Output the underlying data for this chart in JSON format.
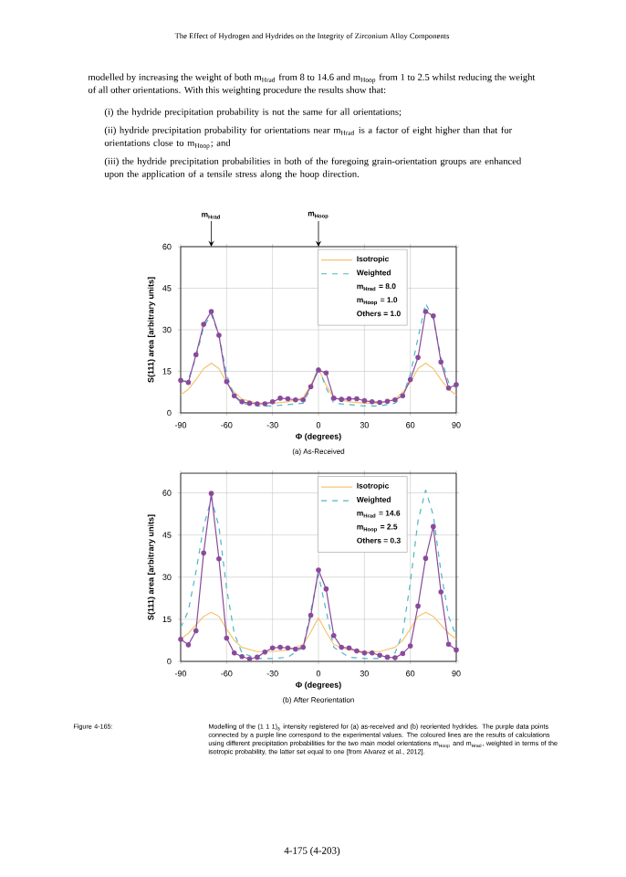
{
  "chart_data": [
    {
      "type": "line",
      "title": "(a) As-Received",
      "xlabel": "Φ (degrees)",
      "ylabel": "S(111) area [arbitrary units]",
      "xlim": [
        -90,
        90
      ],
      "ylim": [
        0,
        60
      ],
      "xticks": [
        -90,
        -60,
        -30,
        0,
        30,
        60,
        90
      ],
      "yticks": [
        0,
        15,
        30,
        45,
        60
      ],
      "grid": true,
      "legend": "top",
      "annotations": [
        "The Effect of Hydrogen and Hydrides on the Integrity of Zirconium Alloy Components",
        "modelled by increasing the weight of both m$_{Hrad}$ from 8 to 14.6 and m$_{Hoop}$ from 1 to 2.5 whilst reducing the weight of all other orientations. With this weighting procedure the results show that:",
        "(i) the hydride precipitation probability is not the same for all orientations;",
        "(ii) hydride precipitation probability for orientations near m$_{Hrad}$ is a factor of eight higher than that for orientations close to m$_{Hoop}$; and",
        "(iii) the hydride precipitation probabilities in both of the foregoing grain-orientation groups are enhanced upon the application of a tensile stress along the hoop direction.",
        {
          "text": "m$_{Hrad}$",
          "x": -70,
          "y": 60
        },
        {
          "text": "m$_{Hoop}$",
          "x": 0,
          "y": 60
        },
        "m$_{Hrad}$ = 8.0",
        "m$_{Hoop}$ = 1.0",
        "Others = 1.0"
      ],
      "series": [
        {
          "name": "Isotropic",
          "color": "#f5c46e",
          "line_style": "solid",
          "marker": "none",
          "x": [
            -90,
            -85,
            -80,
            -75,
            -70,
            -65,
            -60,
            -55,
            -50,
            -40,
            -30,
            -20,
            -10,
            -5,
            0,
            5,
            10,
            20,
            30,
            40,
            50,
            55,
            60,
            65,
            70,
            75,
            80,
            85,
            90
          ],
          "values": [
            6.5,
            8.5,
            12,
            16,
            18,
            16,
            11,
            7.5,
            5,
            3.5,
            3.5,
            4,
            5.5,
            10,
            16,
            10,
            5.5,
            4,
            3.5,
            3.5,
            5,
            7.5,
            11,
            16,
            18,
            16,
            12,
            8.5,
            6.5
          ]
        },
        {
          "name": "Weighted",
          "color": "#4db6c4",
          "line_style": "dashed",
          "marker": "none",
          "x": [
            -90,
            -85,
            -80,
            -75,
            -70,
            -65,
            -60,
            -55,
            -50,
            -40,
            -30,
            -20,
            -10,
            -5,
            0,
            5,
            10,
            20,
            30,
            40,
            50,
            55,
            60,
            65,
            70,
            75,
            80,
            85,
            90
          ],
          "values": [
            11,
            12,
            20,
            31,
            35.5,
            28,
            14,
            6,
            3.5,
            2.5,
            2.5,
            3,
            3.5,
            9,
            16.5,
            9,
            3.5,
            3,
            2.5,
            2.5,
            3.5,
            6,
            14,
            27,
            39.5,
            34,
            20,
            11,
            9
          ]
        },
        {
          "color": "#8a4a9c",
          "line_style": "solid",
          "marker": "circle",
          "x": [
            -90,
            -85,
            -80,
            -75,
            -70,
            -65,
            -60,
            -55,
            -50,
            -45,
            -40,
            -35,
            -30,
            -25,
            -20,
            -15,
            -10,
            -5,
            0,
            5,
            10,
            15,
            20,
            25,
            30,
            35,
            40,
            45,
            50,
            55,
            60,
            65,
            70,
            75,
            80,
            85,
            90
          ],
          "values": [
            11.8,
            11,
            21,
            32,
            36.6,
            28,
            11.3,
            6.2,
            4,
            3.5,
            3.3,
            3.3,
            4,
            5.3,
            5.1,
            4.7,
            4.7,
            9.5,
            15.5,
            14.4,
            5.3,
            4.9,
            5.1,
            5.1,
            4.4,
            4,
            3.8,
            4.2,
            4.7,
            6.2,
            12,
            20,
            36.6,
            35,
            18.4,
            9,
            10.2
          ]
        }
      ]
    },
    {
      "type": "line",
      "title": "(b) After Reorientation",
      "xlabel": "Φ (degrees)",
      "ylabel": "S(111) area [arbitrary units]",
      "xlim": [
        -90,
        90
      ],
      "ylim": [
        0,
        67
      ],
      "xticks": [
        -90,
        -60,
        -30,
        0,
        30,
        60,
        90
      ],
      "yticks": [
        0,
        15,
        30,
        45,
        60
      ],
      "grid": true,
      "legend": "top",
      "annotations": [
        "m$_{Hrad}$ = 14.6",
        "m$_{Hoop}$ = 2.5",
        "Others = 0.3",
        "Figure 4-165:",
        "Modelling of the (1 1 1)$_{δ}$ intensity registered for (a) as-received and (b) reoriented hydrides. The purple data points connected by a purple line correspond to the experimental values. The coloured lines are the results of calculations using different precipitation probabilities for the two main model orientations m$_{Hoop}$ and m$_{Hrad}$, weighted in terms of the isotropic probability, the latter set equal to one [from Alvarez et al., 2012].",
        "4-175 (4-203)"
      ],
      "series": [
        {
          "name": "Isotropic",
          "color": "#f5c46e",
          "line_style": "solid",
          "marker": "none",
          "x": [
            -90,
            -85,
            -80,
            -75,
            -70,
            -65,
            -60,
            -55,
            -50,
            -40,
            -30,
            -20,
            -10,
            -5,
            0,
            5,
            10,
            20,
            30,
            40,
            50,
            55,
            60,
            65,
            70,
            75,
            80,
            85,
            90
          ],
          "values": [
            8,
            10,
            13,
            16,
            17.5,
            16,
            11.5,
            7.5,
            5,
            3.5,
            3.5,
            4,
            6,
            10.5,
            15.5,
            10.5,
            6,
            4,
            3.5,
            3.5,
            5,
            7.5,
            11.5,
            16,
            17.5,
            16,
            13,
            10,
            8
          ]
        },
        {
          "name": "Weighted",
          "color": "#4db6c4",
          "line_style": "dashed",
          "marker": "none",
          "x": [
            -90,
            -85,
            -80,
            -75,
            -70,
            -65,
            -60,
            -55,
            -50,
            -40,
            -30,
            -20,
            -10,
            -5,
            0,
            5,
            10,
            20,
            30,
            40,
            50,
            55,
            60,
            65,
            70,
            75,
            80,
            85,
            90
          ],
          "values": [
            12,
            18,
            32,
            48,
            58,
            48,
            26,
            10,
            3,
            1,
            1,
            1.5,
            5,
            18,
            31,
            18,
            5,
            1.5,
            1,
            1,
            3,
            10,
            28,
            50,
            61,
            52,
            32,
            16,
            9
          ]
        },
        {
          "color": "#8a4a9c",
          "line_style": "solid",
          "marker": "circle",
          "x": [
            -90,
            -85,
            -80,
            -75,
            -70,
            -65,
            -60,
            -55,
            -50,
            -45,
            -40,
            -35,
            -30,
            -25,
            -20,
            -15,
            -10,
            -5,
            0,
            5,
            10,
            15,
            20,
            25,
            30,
            35,
            40,
            45,
            50,
            55,
            60,
            65,
            70,
            75,
            80,
            85,
            90
          ],
          "values": [
            7.9,
            5.9,
            10.9,
            38.6,
            59.8,
            36.5,
            8.3,
            3,
            1.7,
            0.9,
            1.5,
            3.3,
            4.8,
            5,
            4.8,
            4.4,
            5,
            16.4,
            32.5,
            25.8,
            9.2,
            5,
            4.8,
            3.7,
            3,
            3,
            2.2,
            1.5,
            1.3,
            2.8,
            5.5,
            19.7,
            36.7,
            48,
            24.7,
            6.1,
            4.1
          ]
        }
      ]
    }
  ]
}
